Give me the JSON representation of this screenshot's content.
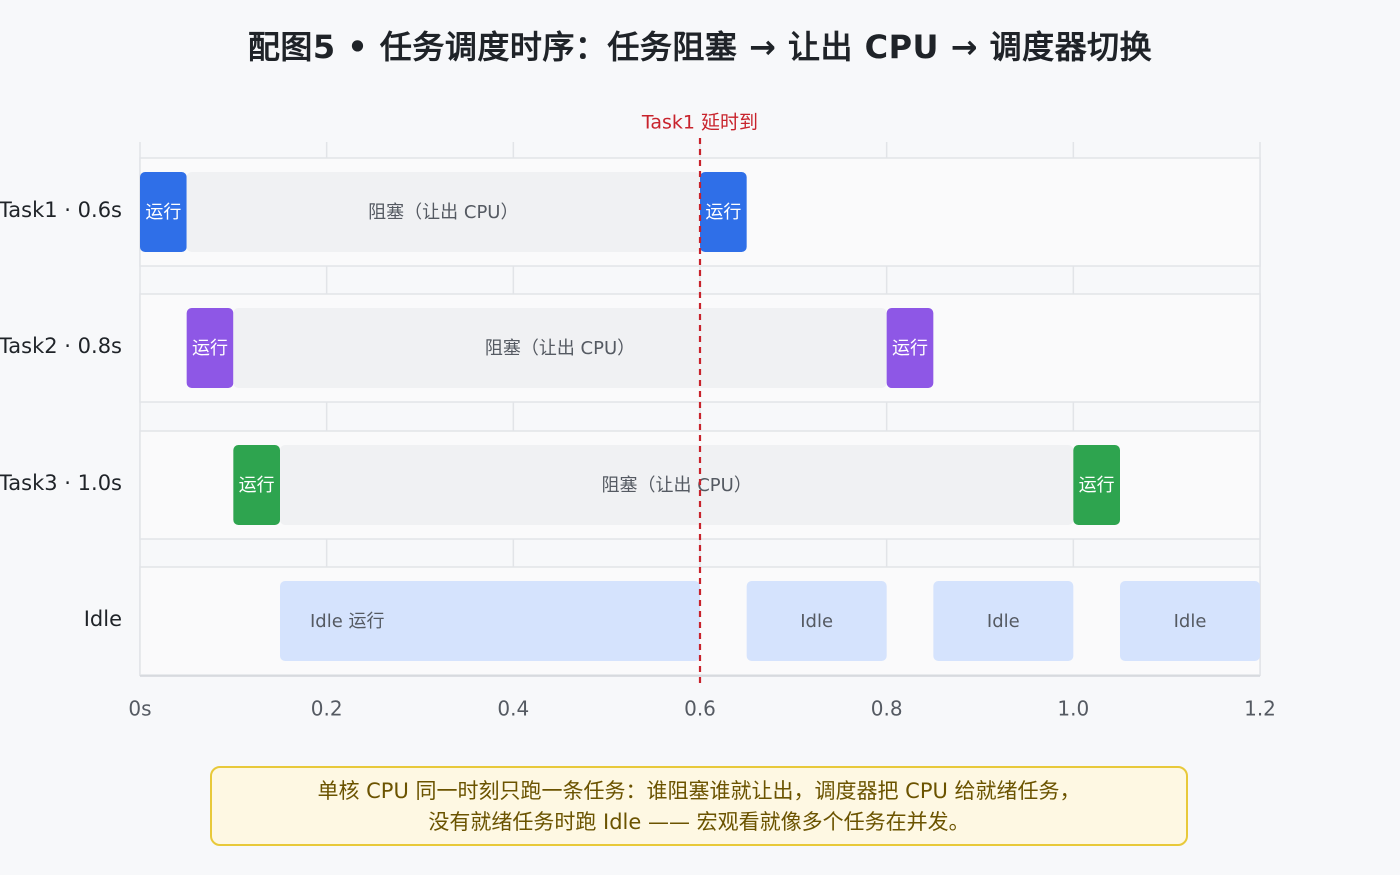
{
  "title": "配图5 • 任务调度时序：任务阻塞 → 让出 CPU → 调度器切换",
  "chart_data": {
    "type": "gantt",
    "xlim": [
      0,
      1.2
    ],
    "x_ticks": [
      {
        "value": 0,
        "label": "0s"
      },
      {
        "value": 0.2,
        "label": "0.2"
      },
      {
        "value": 0.4,
        "label": "0.4"
      },
      {
        "value": 0.6,
        "label": "0.6"
      },
      {
        "value": 0.8,
        "label": "0.8"
      },
      {
        "value": 1.0,
        "label": "1.0"
      },
      {
        "value": 1.2,
        "label": "1.2"
      }
    ],
    "rows": [
      {
        "label": "Task1 · 0.6s",
        "segments": [
          {
            "start": 0.0,
            "end": 0.05,
            "kind": "run",
            "label": "运行",
            "color": "#2f6fe8"
          },
          {
            "start": 0.05,
            "end": 0.6,
            "kind": "block",
            "label": "阻塞（让出 CPU）"
          },
          {
            "start": 0.6,
            "end": 0.65,
            "kind": "run",
            "label": "运行",
            "color": "#2f6fe8"
          }
        ]
      },
      {
        "label": "Task2 · 0.8s",
        "segments": [
          {
            "start": 0.05,
            "end": 0.1,
            "kind": "run",
            "label": "运行",
            "color": "#8e57e6"
          },
          {
            "start": 0.1,
            "end": 0.8,
            "kind": "block",
            "label": "阻塞（让出 CPU）"
          },
          {
            "start": 0.8,
            "end": 0.85,
            "kind": "run",
            "label": "运行",
            "color": "#8e57e6"
          }
        ]
      },
      {
        "label": "Task3 · 1.0s",
        "segments": [
          {
            "start": 0.1,
            "end": 0.15,
            "kind": "run",
            "label": "运行",
            "color": "#2ea44f"
          },
          {
            "start": 0.15,
            "end": 1.0,
            "kind": "block",
            "label": "阻塞（让出 CPU）"
          },
          {
            "start": 1.0,
            "end": 1.05,
            "kind": "run",
            "label": "运行",
            "color": "#2ea44f"
          }
        ]
      },
      {
        "label": "Idle",
        "segments": [
          {
            "start": 0.15,
            "end": 0.6,
            "kind": "idle",
            "label": "Idle 运行",
            "align": "left"
          },
          {
            "start": 0.65,
            "end": 0.8,
            "kind": "idle",
            "label": "Idle"
          },
          {
            "start": 0.85,
            "end": 1.0,
            "kind": "idle",
            "label": "Idle"
          },
          {
            "start": 1.05,
            "end": 1.2,
            "kind": "idle",
            "label": "Idle"
          }
        ]
      }
    ],
    "marker": {
      "x": 0.6,
      "label": "Task1 延时到",
      "color": "#c8232c"
    },
    "colors": {
      "block": "#f0f1f3",
      "idle": "#d5e3fd",
      "block_text": "#555a62",
      "idle_text": "#555a62",
      "run_text": "#ffffff"
    }
  },
  "note": {
    "line1": "单核 CPU 同一时刻只跑一条任务：谁阻塞谁就让出，调度器把 CPU 给就绪任务，",
    "line2": "没有就绪任务时跑 Idle —— 宏观看就像多个任务在并发。"
  }
}
